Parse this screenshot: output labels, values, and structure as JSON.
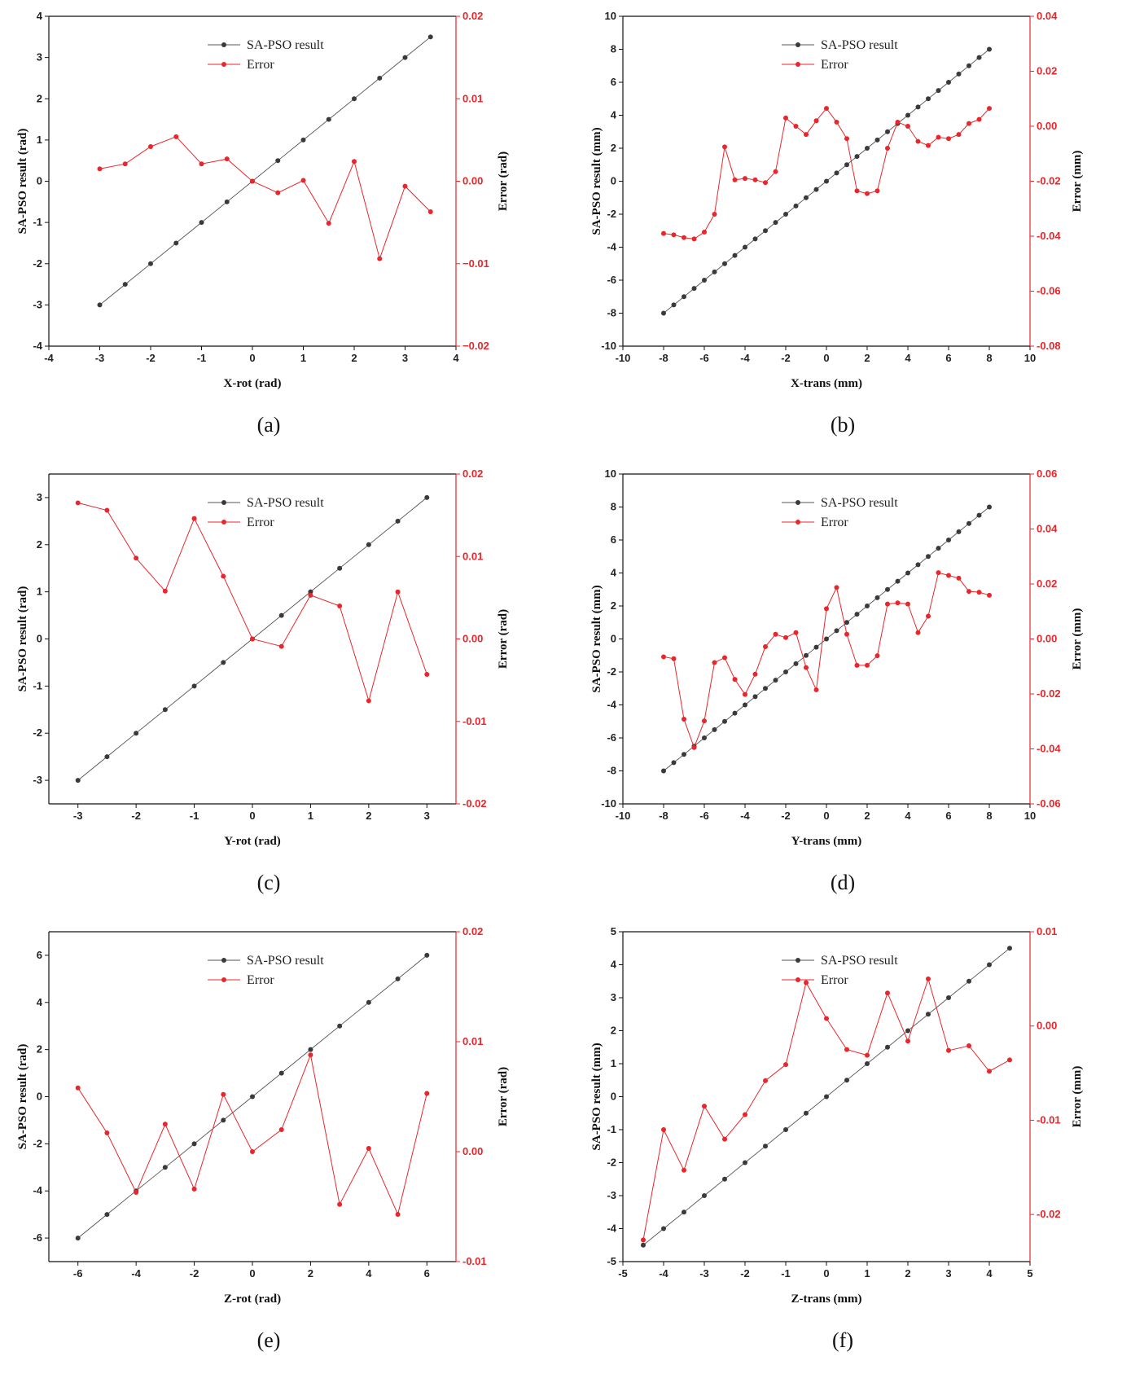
{
  "colors": {
    "main": "#3a3a3a",
    "error": "#e8262b",
    "axis": "#111111"
  },
  "chart_data": [
    {
      "type": "line",
      "caption": "(a)",
      "xlabel": "X-rot (rad)",
      "ylabel": "SA-PSO result (rad)",
      "y2label": "Error (rad)",
      "xlim": [
        -4,
        4
      ],
      "ylim": [
        -4,
        4
      ],
      "y2lim": [
        -0.02,
        0.02
      ],
      "xticks": [
        -4,
        -3,
        -2,
        -1,
        0,
        1,
        2,
        3,
        4
      ],
      "xtick_labels": [
        "-4",
        "-3",
        "-2",
        "-1",
        "0",
        "1",
        "2",
        "3",
        "4"
      ],
      "yticks": [
        -4,
        -3,
        -2,
        -1,
        0,
        1,
        2,
        3,
        4
      ],
      "ytick_labels": [
        "-4",
        "-3",
        "-2",
        "-1",
        "0",
        "1",
        "2",
        "3",
        "4"
      ],
      "y2ticks": [
        -0.02,
        -0.01,
        0,
        0.01,
        0.02
      ],
      "y2tick_labels": [
        "−0.02",
        "−0.01",
        "0.00",
        "0.01",
        "0.02"
      ],
      "legend": [
        "SA-PSO result",
        "Error"
      ],
      "series": [
        {
          "name": "SA-PSO result",
          "axis": "left",
          "x": [
            -3,
            -2.5,
            -2,
            -1.5,
            -1,
            -0.5,
            0,
            0.5,
            1,
            1.5,
            2,
            2.5,
            3,
            3.5
          ],
          "values": [
            -3,
            -2.5,
            -2,
            -1.5,
            -1,
            -0.5,
            0,
            0.5,
            1,
            1.5,
            2,
            2.5,
            3,
            3.5
          ]
        },
        {
          "name": "Error",
          "axis": "right",
          "x": [
            -3,
            -2.5,
            -2,
            -1.5,
            -1,
            -0.5,
            0,
            0.5,
            1,
            1.5,
            2,
            2.5,
            3,
            3.5
          ],
          "values": [
            0.0015,
            0.0021,
            0.0042,
            0.0054,
            0.0021,
            0.0027,
            0.0,
            -0.0014,
            0.0001,
            -0.0051,
            0.0024,
            -0.0094,
            -0.0006,
            -0.0037
          ]
        }
      ]
    },
    {
      "type": "line",
      "caption": "(b)",
      "xlabel": "X-trans (mm)",
      "ylabel": "SA-PSO result (mm)",
      "y2label": "Error (mm)",
      "xlim": [
        -10,
        10
      ],
      "ylim": [
        -10,
        10
      ],
      "y2lim": [
        -0.08,
        0.04
      ],
      "xticks": [
        -10,
        -8,
        -6,
        -4,
        -2,
        0,
        2,
        4,
        6,
        8,
        10
      ],
      "xtick_labels": [
        "-10",
        "-8",
        "-6",
        "-4",
        "-2",
        "0",
        "2",
        "4",
        "6",
        "8",
        "10"
      ],
      "yticks": [
        -10,
        -8,
        -6,
        -4,
        -2,
        0,
        2,
        4,
        6,
        8,
        10
      ],
      "ytick_labels": [
        "-10",
        "-8",
        "-6",
        "-4",
        "-2",
        "0",
        "2",
        "4",
        "6",
        "8",
        "10"
      ],
      "y2ticks": [
        -0.08,
        -0.06,
        -0.04,
        -0.02,
        0,
        0.02,
        0.04
      ],
      "y2tick_labels": [
        "-0.08",
        "-0.06",
        "-0.04",
        "-0.02",
        "0.00",
        "0.02",
        "0.04"
      ],
      "legend": [
        "SA-PSO result",
        "Error"
      ],
      "series": [
        {
          "name": "SA-PSO result",
          "axis": "left",
          "x": [
            -8,
            -7.5,
            -7,
            -6.5,
            -6,
            -5.5,
            -5,
            -4.5,
            -4,
            -3.5,
            -3,
            -2.5,
            -2,
            -1.5,
            -1,
            -0.5,
            0,
            0.5,
            1,
            1.5,
            2,
            2.5,
            3,
            3.5,
            4,
            4.5,
            5,
            5.5,
            6,
            6.5,
            7,
            7.5,
            8
          ],
          "values": [
            -8,
            -7.5,
            -7,
            -6.5,
            -6,
            -5.5,
            -5,
            -4.5,
            -4,
            -3.5,
            -3,
            -2.5,
            -2,
            -1.5,
            -1,
            -0.5,
            0,
            0.5,
            1,
            1.5,
            2,
            2.5,
            3,
            3.5,
            4,
            4.5,
            5,
            5.5,
            6,
            6.5,
            7,
            7.5,
            8
          ]
        },
        {
          "name": "Error",
          "axis": "right",
          "x": [
            -8,
            -7.5,
            -7,
            -6.5,
            -6,
            -5.5,
            -5,
            -4.5,
            -4,
            -3.5,
            -3,
            -2.5,
            -2,
            -1.5,
            -1,
            -0.5,
            0,
            0.5,
            1,
            1.5,
            2,
            2.5,
            3,
            3.5,
            4,
            4.5,
            5,
            5.5,
            6,
            6.5,
            7,
            7.5,
            8
          ],
          "values": [
            -0.039,
            -0.0395,
            -0.0405,
            -0.041,
            -0.0385,
            -0.032,
            -0.0075,
            -0.0195,
            -0.019,
            -0.0195,
            -0.0205,
            -0.0165,
            0.003,
            0.0,
            -0.003,
            0.002,
            0.0065,
            0.0015,
            -0.0045,
            -0.0235,
            -0.0245,
            -0.0235,
            -0.008,
            0.0015,
            0.0,
            -0.0055,
            -0.007,
            -0.004,
            -0.0045,
            -0.003,
            0.001,
            0.0025,
            0.0065
          ]
        }
      ]
    },
    {
      "type": "line",
      "caption": "(c)",
      "xlabel": "Y-rot (rad)",
      "ylabel": "SA-PSO result (rad)",
      "y2label": "Error (rad)",
      "xlim": [
        -3.5,
        3.5
      ],
      "ylim": [
        -3.5,
        3.5
      ],
      "y2lim": [
        -0.02,
        0.02
      ],
      "xticks": [
        -3,
        -2,
        -1,
        0,
        1,
        2,
        3
      ],
      "xtick_labels": [
        "-3",
        "-2",
        "-1",
        "0",
        "1",
        "2",
        "3"
      ],
      "yticks": [
        -3,
        -2,
        -1,
        0,
        1,
        2,
        3
      ],
      "ytick_labels": [
        "-3",
        "-2",
        "-1",
        "0",
        "1",
        "2",
        "3"
      ],
      "y2ticks": [
        -0.02,
        -0.01,
        0,
        0.01,
        0.02
      ],
      "y2tick_labels": [
        "-0.02",
        "-0.01",
        "0.00",
        "0.01",
        "0.02"
      ],
      "legend": [
        "SA-PSO result",
        "Error"
      ],
      "series": [
        {
          "name": "SA-PSO result",
          "axis": "left",
          "x": [
            -3,
            -2.5,
            -2,
            -1.5,
            -1,
            -0.5,
            0,
            0.5,
            1,
            1.5,
            2,
            2.5,
            3
          ],
          "values": [
            -3,
            -2.5,
            -2,
            -1.5,
            -1,
            -0.5,
            0,
            0.5,
            1,
            1.5,
            2,
            2.5,
            3
          ]
        },
        {
          "name": "Error",
          "axis": "right",
          "x": [
            -3,
            -2.5,
            -2,
            -1.5,
            -1,
            -0.5,
            0,
            0.5,
            1,
            1.5,
            2,
            2.5,
            3
          ],
          "values": [
            0.0165,
            0.0156,
            0.0098,
            0.0058,
            0.0146,
            0.0076,
            0.0,
            -0.0009,
            0.0053,
            0.004,
            -0.0075,
            0.0057,
            -0.0043
          ]
        }
      ]
    },
    {
      "type": "line",
      "caption": "(d)",
      "xlabel": "Y-trans (mm)",
      "ylabel": "SA-PSO result (mm)",
      "y2label": "Error (mm)",
      "xlim": [
        -10,
        10
      ],
      "ylim": [
        -10,
        10
      ],
      "y2lim": [
        -0.06,
        0.06
      ],
      "xticks": [
        -10,
        -8,
        -6,
        -4,
        -2,
        0,
        2,
        4,
        6,
        8,
        10
      ],
      "xtick_labels": [
        "-10",
        "-8",
        "-6",
        "-4",
        "-2",
        "0",
        "2",
        "4",
        "6",
        "8",
        "10"
      ],
      "yticks": [
        -10,
        -8,
        -6,
        -4,
        -2,
        0,
        2,
        4,
        6,
        8,
        10
      ],
      "ytick_labels": [
        "-10",
        "-8",
        "-6",
        "-4",
        "-2",
        "0",
        "2",
        "4",
        "6",
        "8",
        "10"
      ],
      "y2ticks": [
        -0.06,
        -0.04,
        -0.02,
        0,
        0.02,
        0.04,
        0.06
      ],
      "y2tick_labels": [
        "-0.06",
        "-0.04",
        "-0.02",
        "0.00",
        "0.02",
        "0.04",
        "0.06"
      ],
      "legend": [
        "SA-PSO result",
        "Error"
      ],
      "series": [
        {
          "name": "SA-PSO result",
          "axis": "left",
          "x": [
            -8,
            -7.5,
            -7,
            -6.5,
            -6,
            -5.5,
            -5,
            -4.5,
            -4,
            -3.5,
            -3,
            -2.5,
            -2,
            -1.5,
            -1,
            -0.5,
            0,
            0.5,
            1,
            1.5,
            2,
            2.5,
            3,
            3.5,
            4,
            4.5,
            5,
            5.5,
            6,
            6.5,
            7,
            7.5,
            8
          ],
          "values": [
            -8,
            -7.5,
            -7,
            -6.5,
            -6,
            -5.5,
            -5,
            -4.5,
            -4,
            -3.5,
            -3,
            -2.5,
            -2,
            -1.5,
            -1,
            -0.5,
            0,
            0.5,
            1,
            1.5,
            2,
            2.5,
            3,
            3.5,
            4,
            4.5,
            5,
            5.5,
            6,
            6.5,
            7,
            7.5,
            8
          ]
        },
        {
          "name": "Error",
          "axis": "right",
          "x": [
            -8,
            -7.5,
            -7,
            -6.5,
            -6,
            -5.5,
            -5,
            -4.5,
            -4,
            -3.5,
            -3,
            -2.5,
            -2,
            -1.5,
            -1,
            -0.5,
            0,
            0.5,
            1,
            1.5,
            2,
            2.5,
            3,
            3.5,
            4,
            4.5,
            5,
            5.5,
            6,
            6.5,
            7,
            7.5,
            8
          ],
          "values": [
            -0.0065,
            -0.0072,
            -0.0292,
            -0.0395,
            -0.0298,
            -0.0086,
            -0.0068,
            -0.0147,
            -0.0202,
            -0.0128,
            -0.0028,
            0.0017,
            0.0005,
            0.0023,
            -0.0104,
            -0.0185,
            0.011,
            0.0187,
            0.0017,
            -0.0096,
            -0.0096,
            -0.0061,
            0.0127,
            0.0131,
            0.0127,
            0.0023,
            0.0083,
            0.0241,
            0.0231,
            0.0221,
            0.0173,
            0.017,
            0.0159
          ]
        }
      ]
    },
    {
      "type": "line",
      "caption": "(e)",
      "xlabel": "Z-rot (rad)",
      "ylabel": "SA-PSO result (rad)",
      "y2label": "Error (rad)",
      "xlim": [
        -7,
        7
      ],
      "ylim": [
        -7,
        7
      ],
      "y2lim": [
        -0.01,
        0.02
      ],
      "xticks": [
        -6,
        -4,
        -2,
        0,
        2,
        4,
        6
      ],
      "xtick_labels": [
        "-6",
        "-4",
        "-2",
        "0",
        "2",
        "4",
        "6"
      ],
      "yticks": [
        -6,
        -4,
        -2,
        0,
        2,
        4,
        6
      ],
      "ytick_labels": [
        "-6",
        "-4",
        "-2",
        "0",
        "2",
        "4",
        "6"
      ],
      "y2ticks": [
        -0.01,
        0,
        0.01,
        0.02
      ],
      "y2tick_labels": [
        "-0.01",
        "0.00",
        "0.01",
        "0.02"
      ],
      "legend": [
        "SA-PSO result",
        "Error"
      ],
      "series": [
        {
          "name": "SA-PSO result",
          "axis": "left",
          "x": [
            -6,
            -5,
            -4,
            -3,
            -2,
            -1,
            0,
            1,
            2,
            3,
            4,
            5,
            6
          ],
          "values": [
            -6,
            -5,
            -4,
            -3,
            -2,
            -1,
            0,
            1,
            2,
            3,
            4,
            5,
            6
          ]
        },
        {
          "name": "Error",
          "axis": "right",
          "x": [
            -6,
            -5,
            -4,
            -3,
            -2,
            -1,
            0,
            1,
            2,
            3,
            4,
            5,
            6
          ],
          "values": [
            0.0058,
            0.0017,
            -0.0037,
            0.0025,
            -0.0034,
            0.0052,
            0.0,
            0.002,
            0.0088,
            -0.0048,
            0.0003,
            -0.0057,
            0.0053
          ]
        }
      ]
    },
    {
      "type": "line",
      "caption": "(f)",
      "xlabel": "Z-trans (mm)",
      "ylabel": "SA-PSO result (mm)",
      "y2label": "Error (mm)",
      "xlim": [
        -5,
        5
      ],
      "ylim": [
        -5,
        5
      ],
      "y2lim": [
        -0.025,
        0.01
      ],
      "xticks": [
        -5,
        -4,
        -3,
        -2,
        -1,
        0,
        1,
        2,
        3,
        4,
        5
      ],
      "xtick_labels": [
        "-5",
        "-4",
        "-3",
        "-2",
        "-1",
        "0",
        "1",
        "2",
        "3",
        "4",
        "5"
      ],
      "yticks": [
        -5,
        -4,
        -3,
        -2,
        -1,
        0,
        1,
        2,
        3,
        4,
        5
      ],
      "ytick_labels": [
        "-5",
        "-4",
        "-3",
        "-2",
        "-1",
        "0",
        "1",
        "2",
        "3",
        "4",
        "5"
      ],
      "y2ticks": [
        -0.02,
        -0.01,
        0,
        0.01
      ],
      "y2tick_labels": [
        "-0.02",
        "-0.01",
        "0.00",
        "0.01"
      ],
      "legend": [
        "SA-PSO result",
        "Error"
      ],
      "series": [
        {
          "name": "SA-PSO result",
          "axis": "left",
          "x": [
            -4.5,
            -4,
            -3.5,
            -3,
            -2.5,
            -2,
            -1.5,
            -1,
            -0.5,
            0,
            0.5,
            1,
            1.5,
            2,
            2.5,
            3,
            3.5,
            4,
            4.5
          ],
          "values": [
            -4.5,
            -4,
            -3.5,
            -3,
            -2.5,
            -2,
            -1.5,
            -1,
            -0.5,
            0,
            0.5,
            1,
            1.5,
            2,
            2.5,
            3,
            3.5,
            4,
            4.5
          ]
        },
        {
          "name": "Error",
          "axis": "right",
          "x": [
            -4.5,
            -4,
            -3.5,
            -3,
            -2.5,
            -2,
            -1.5,
            -1,
            -0.5,
            0,
            0.5,
            1,
            1.5,
            2,
            2.5,
            3,
            3.5,
            4,
            4.5
          ],
          "values": [
            -0.0227,
            -0.011,
            -0.0153,
            -0.0085,
            -0.012,
            -0.0094,
            -0.0058,
            -0.0041,
            0.0046,
            0.0008,
            -0.0025,
            -0.0031,
            0.0035,
            -0.0016,
            0.005,
            -0.0026,
            -0.0021,
            -0.0048,
            -0.0036
          ]
        }
      ]
    }
  ]
}
